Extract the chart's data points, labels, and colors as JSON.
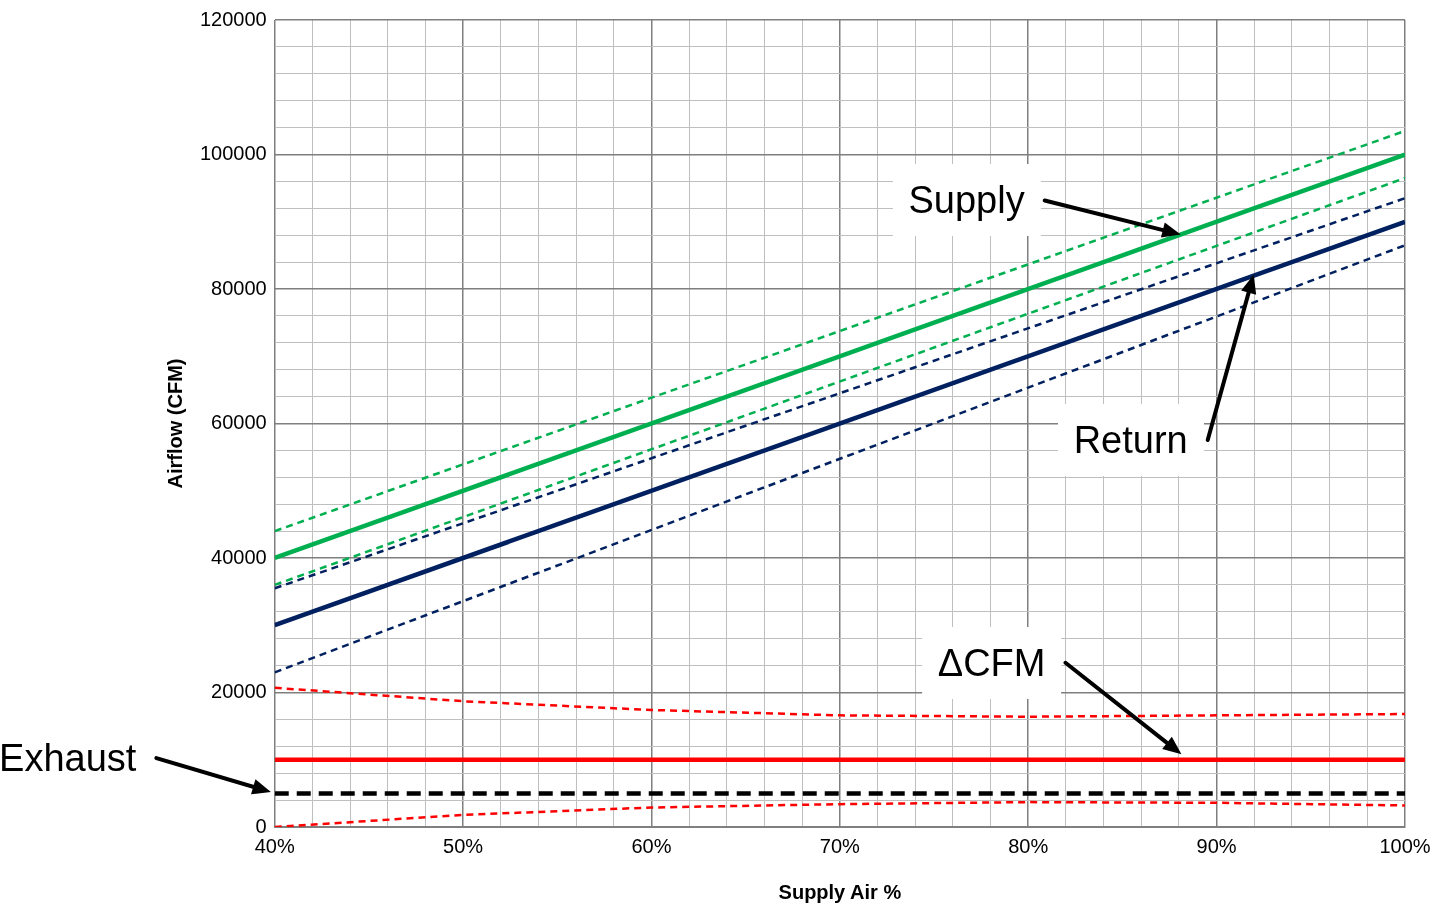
{
  "chart_data": {
    "type": "line",
    "xlabel": "Supply Air %",
    "ylabel": "Airflow (CFM)",
    "xlim": [
      40,
      100
    ],
    "ylim": [
      0,
      120000
    ],
    "xticks": [
      {
        "value": 40,
        "label": "40%"
      },
      {
        "value": 42,
        "label": null
      },
      {
        "value": 44,
        "label": null
      },
      {
        "value": 46,
        "label": null
      },
      {
        "value": 48,
        "label": null
      },
      {
        "value": 50,
        "label": "50%"
      },
      {
        "value": 52,
        "label": null
      },
      {
        "value": 54,
        "label": null
      },
      {
        "value": 56,
        "label": null
      },
      {
        "value": 58,
        "label": null
      },
      {
        "value": 60,
        "label": "60%"
      },
      {
        "value": 62,
        "label": null
      },
      {
        "value": 64,
        "label": null
      },
      {
        "value": 66,
        "label": null
      },
      {
        "value": 68,
        "label": null
      },
      {
        "value": 70,
        "label": "70%"
      },
      {
        "value": 72,
        "label": null
      },
      {
        "value": 74,
        "label": null
      },
      {
        "value": 76,
        "label": null
      },
      {
        "value": 78,
        "label": null
      },
      {
        "value": 80,
        "label": "80%"
      },
      {
        "value": 82,
        "label": null
      },
      {
        "value": 84,
        "label": null
      },
      {
        "value": 86,
        "label": null
      },
      {
        "value": 88,
        "label": null
      },
      {
        "value": 90,
        "label": "90%"
      },
      {
        "value": 92,
        "label": null
      },
      {
        "value": 94,
        "label": null
      },
      {
        "value": 96,
        "label": null
      },
      {
        "value": 98,
        "label": null
      },
      {
        "value": 100,
        "label": "100%"
      }
    ],
    "yticks": [
      0,
      {
        "value": 4000,
        "label": null
      },
      {
        "value": 8000,
        "label": null
      },
      {
        "value": 12000,
        "label": null
      },
      {
        "value": 16000,
        "label": null
      },
      20000,
      {
        "value": 24000,
        "label": null
      },
      {
        "value": 28000,
        "label": null
      },
      {
        "value": 32000,
        "label": null
      },
      {
        "value": 36000,
        "label": null
      },
      40000,
      {
        "value": 44000,
        "label": null
      },
      {
        "value": 48000,
        "label": null
      },
      {
        "value": 52000,
        "label": null
      },
      {
        "value": 56000,
        "label": null
      },
      60000,
      {
        "value": 64000,
        "label": null
      },
      {
        "value": 68000,
        "label": null
      },
      {
        "value": 72000,
        "label": null
      },
      {
        "value": 76000,
        "label": null
      },
      80000,
      {
        "value": 84000,
        "label": null
      },
      {
        "value": 88000,
        "label": null
      },
      {
        "value": 92000,
        "label": null
      },
      {
        "value": 96000,
        "label": null
      },
      100000,
      {
        "value": 104000,
        "label": null
      },
      {
        "value": 108000,
        "label": null
      },
      {
        "value": 112000,
        "label": null
      },
      {
        "value": 116000,
        "label": null
      },
      120000
    ],
    "grid": true,
    "legend": false,
    "marker": "none",
    "series": [
      {
        "color": "#00b050",
        "line_style": "dashed",
        "x": [
          40,
          100
        ],
        "values": [
          44000,
          103500
        ]
      },
      {
        "color": "#00b050",
        "line_style": "solid",
        "x": [
          40,
          100
        ],
        "values": [
          40000,
          100000
        ]
      },
      {
        "color": "#00b050",
        "line_style": "dashed",
        "x": [
          40,
          100
        ],
        "values": [
          36000,
          96500
        ]
      },
      {
        "color": "#002060",
        "line_style": "dashed",
        "x": [
          40,
          100
        ],
        "values": [
          35500,
          93500
        ]
      },
      {
        "color": "#002060",
        "line_style": "solid",
        "x": [
          40,
          100
        ],
        "values": [
          30000,
          90000
        ]
      },
      {
        "color": "#002060",
        "line_style": "dashed",
        "x": [
          40,
          100
        ],
        "values": [
          23000,
          86500
        ]
      },
      {
        "color": "#ff0000",
        "line_style": "dashed",
        "x": [
          40,
          50,
          60,
          70,
          80,
          90,
          100
        ],
        "values": [
          20700,
          18700,
          17400,
          16600,
          16400,
          16600,
          16800
        ]
      },
      {
        "color": "#ff0000",
        "line_style": "solid",
        "x": [
          40,
          100
        ],
        "values": [
          10000,
          10000
        ]
      },
      {
        "color": "#000000",
        "line_style": "dashed",
        "x": [
          40,
          100
        ],
        "values": [
          5000,
          5000
        ]
      },
      {
        "color": "#ff0000",
        "line_style": "dashed",
        "x": [
          40,
          50,
          60,
          70,
          80,
          90,
          100
        ],
        "values": [
          0,
          1800,
          2900,
          3400,
          3700,
          3600,
          3200
        ]
      }
    ],
    "annotations": [
      "Supply",
      "Return",
      "ΔCFM",
      "Exhaust"
    ]
  }
}
